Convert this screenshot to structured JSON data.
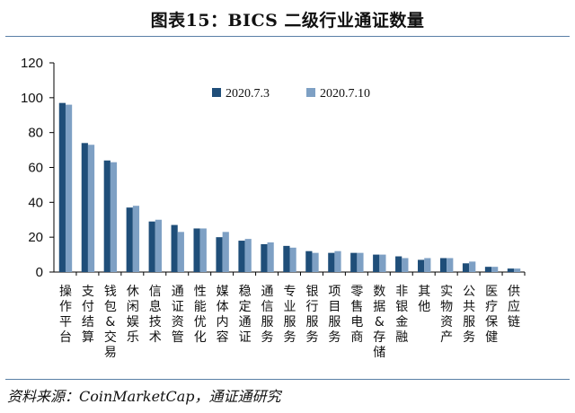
{
  "title": "图表15：BICS 二级行业通证数量",
  "source": "资料来源：CoinMarketCap，通证通研究",
  "colors": {
    "series1": "#1f4e79",
    "series2": "#7ea0c4",
    "rule": "#5a7fa6"
  },
  "chart_data": {
    "type": "bar",
    "title": "图表15：BICS 二级行业通证数量",
    "xlabel": "",
    "ylabel": "",
    "ylim": [
      0,
      120
    ],
    "yticks": [
      0,
      20,
      40,
      60,
      80,
      100,
      120
    ],
    "grid": false,
    "legend_position": "top-right",
    "categories": [
      "操作平台",
      "支付结算",
      "钱包&交易",
      "休闲娱乐",
      "信息技术",
      "通证资管",
      "性能优化",
      "媒体内容",
      "稳定通证",
      "通信服务",
      "专业服务",
      "银行服务",
      "项目服务",
      "零售电商",
      "数据&存储",
      "非银金融",
      "其他",
      "实物资产",
      "公共服务",
      "医疗保健",
      "供应链"
    ],
    "series": [
      {
        "name": "2020.7.3",
        "values": [
          97,
          74,
          64,
          37,
          29,
          27,
          25,
          20,
          18,
          16,
          15,
          12,
          11,
          11,
          10,
          9,
          7,
          8,
          5,
          3,
          2
        ]
      },
      {
        "name": "2020.7.10",
        "values": [
          96,
          73,
          63,
          38,
          30,
          23,
          25,
          23,
          19,
          17,
          14,
          11,
          12,
          11,
          10,
          8,
          8,
          8,
          6,
          3,
          2
        ]
      }
    ]
  }
}
